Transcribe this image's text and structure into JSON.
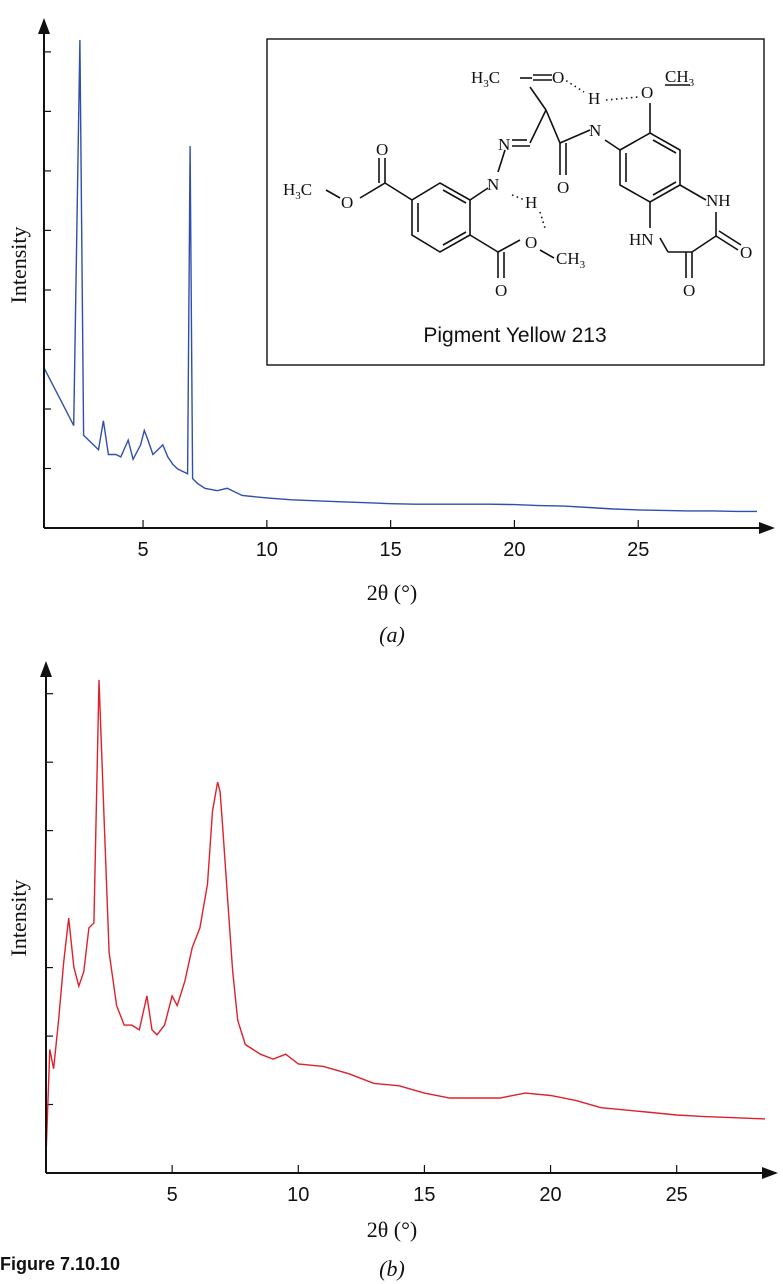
{
  "figure_caption": "Figure 7.10.10",
  "chart_data": [
    {
      "type": "line",
      "panel_label": "(a)",
      "xlabel": "2θ (°)",
      "ylabel": "Intensity",
      "xlim": [
        1,
        30
      ],
      "ylim": [
        0,
        100
      ],
      "x_ticks": [
        5,
        10,
        15,
        20,
        25
      ],
      "grid": false,
      "color": "#2f4fae",
      "series": [
        {
          "x": [
            1.0,
            1.3,
            1.6,
            1.9,
            2.2,
            2.45,
            2.6,
            2.8,
            3.0,
            3.2,
            3.4,
            3.6,
            3.9,
            4.1,
            4.4,
            4.6,
            4.9,
            5.05,
            5.2,
            5.4,
            5.6,
            5.8,
            6.0,
            6.2,
            6.4,
            6.6,
            6.8,
            6.9,
            7.0,
            7.2,
            7.5,
            8.0,
            8.4,
            9.0,
            10.0,
            11.0,
            12.0,
            13.0,
            14.0,
            15.0,
            16.0,
            17.0,
            18.0,
            19.0,
            20.0,
            21.0,
            22.0,
            23.0,
            24.0,
            25.0,
            26.0,
            27.0,
            28.0,
            29.0,
            29.8
          ],
          "y": [
            32,
            29,
            26,
            23,
            20,
            100,
            18,
            17,
            16,
            15,
            21,
            14,
            14,
            13.5,
            17,
            13,
            16,
            19,
            17,
            14,
            15,
            16,
            13.5,
            12,
            11,
            10.5,
            10,
            78,
            9,
            8,
            7,
            6.5,
            7,
            5.5,
            5,
            4.6,
            4.4,
            4.2,
            4,
            3.8,
            3.7,
            3.7,
            3.7,
            3.7,
            3.6,
            3.4,
            3.3,
            3.0,
            2.7,
            2.5,
            2.4,
            2.3,
            2.3,
            2.2,
            2.2
          ]
        }
      ]
    },
    {
      "type": "line",
      "panel_label": "(b)",
      "xlabel": "2θ (°)",
      "ylabel": "Intensity",
      "xlim": [
        0,
        28.5
      ],
      "ylim": [
        0,
        100
      ],
      "x_ticks": [
        5,
        10,
        15,
        20,
        25
      ],
      "grid": false,
      "color": "#e0202a",
      "series": [
        {
          "x": [
            0.0,
            0.15,
            0.3,
            0.5,
            0.7,
            0.9,
            1.1,
            1.3,
            1.5,
            1.7,
            1.9,
            2.1,
            2.3,
            2.5,
            2.8,
            3.1,
            3.4,
            3.7,
            4.0,
            4.2,
            4.4,
            4.7,
            5.0,
            5.2,
            5.5,
            5.8,
            6.1,
            6.4,
            6.6,
            6.8,
            6.9,
            7.0,
            7.2,
            7.4,
            7.6,
            7.9,
            8.5,
            9.0,
            9.5,
            10.0,
            11.0,
            12.0,
            13.0,
            14.0,
            15.0,
            16.0,
            17.0,
            18.0,
            19.0,
            20.0,
            21.0,
            22.0,
            23.0,
            24.0,
            25.0,
            26.0,
            27.0,
            28.0,
            28.5
          ],
          "y": [
            2,
            24,
            20,
            30,
            42,
            51,
            41,
            37,
            40,
            49,
            50,
            100,
            72,
            44,
            33,
            29,
            29,
            28,
            35,
            28,
            27,
            29,
            35,
            33,
            38,
            45,
            49,
            58,
            73,
            79,
            77,
            70,
            55,
            40,
            30,
            25,
            23,
            22,
            23,
            21,
            20.5,
            19,
            17,
            16.5,
            15,
            14,
            14,
            14,
            15,
            14.5,
            13.5,
            12,
            11.5,
            11,
            10.5,
            10.2,
            10,
            9.8,
            9.7
          ]
        }
      ]
    }
  ],
  "inset": {
    "caption": "Pigment Yellow 213",
    "labels": {
      "h3c_top": "H3C",
      "h3c_top_main": "H",
      "h3c_top_sub": "3",
      "h3c_top_c": "C",
      "o_keto": "O",
      "h_top": "H",
      "o_methoxy": "O",
      "ch3_methoxy_main": "CH",
      "ch3_methoxy_sub": "3",
      "n_amide": "N",
      "n_azo1": "N",
      "n_azo2": "N",
      "h_azo": "H",
      "o_amide": "O",
      "o_ester_top": "O",
      "o_ester_top2": "O",
      "h3c_left_main": "H",
      "h3c_left_sub": "3",
      "h3c_left_c": "C",
      "o_ester_bottom": "O",
      "o_ester_bottom2": "O",
      "ch3_ester_main": "CH",
      "ch3_ester_sub": "3",
      "nh_right": "NH",
      "hn_left": "HN",
      "o_ring1": "O",
      "o_ring2": "O"
    }
  }
}
